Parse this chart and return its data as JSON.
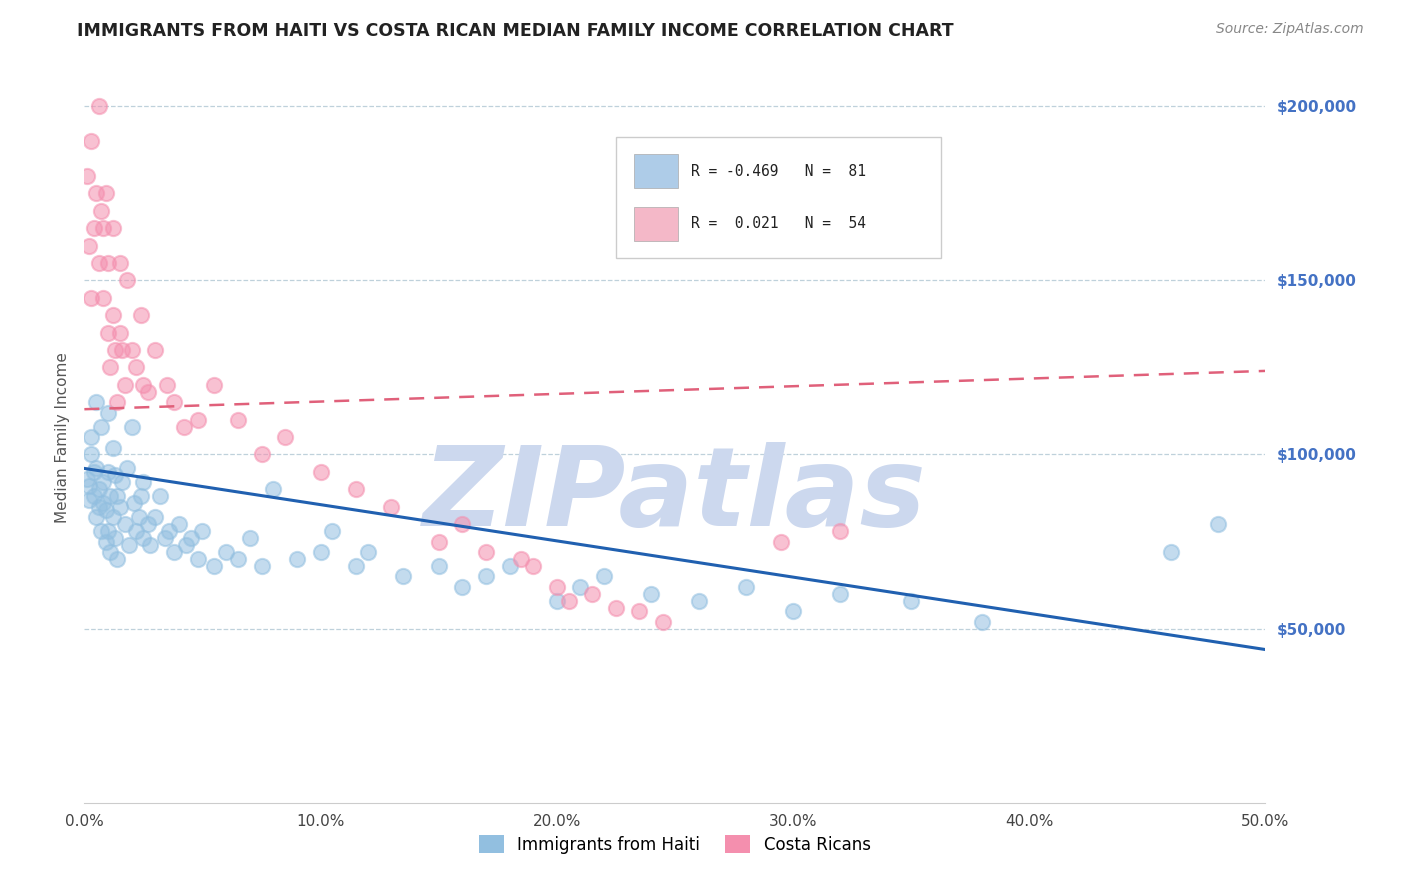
{
  "title": "IMMIGRANTS FROM HAITI VS COSTA RICAN MEDIAN FAMILY INCOME CORRELATION CHART",
  "source_text": "Source: ZipAtlas.com",
  "ylabel": "Median Family Income",
  "xlim": [
    0.0,
    0.5
  ],
  "ylim": [
    0,
    210000
  ],
  "ytick_labels": [
    "$50,000",
    "$100,000",
    "$150,000",
    "$200,000"
  ],
  "ytick_values": [
    50000,
    100000,
    150000,
    200000
  ],
  "xtick_labels": [
    "0.0%",
    "10.0%",
    "20.0%",
    "30.0%",
    "40.0%",
    "50.0%"
  ],
  "xtick_values": [
    0.0,
    0.1,
    0.2,
    0.3,
    0.4,
    0.5
  ],
  "legend_label_haiti": "Immigrants from Haiti",
  "legend_label_cr": "Costa Ricans",
  "haiti_color": "#92bfe0",
  "cr_color": "#f48fae",
  "haiti_line_color": "#2060b0",
  "cr_line_color": "#e0607a",
  "haiti_legend_color": "#aecce8",
  "cr_legend_color": "#f4b8c8",
  "watermark": "ZIPatlas",
  "watermark_color": "#ccd8ee",
  "background_color": "#ffffff",
  "haiti_trend_x": [
    0.0,
    0.5
  ],
  "haiti_trend_y": [
    96000,
    44000
  ],
  "cr_trend_x": [
    0.0,
    0.5
  ],
  "cr_trend_y": [
    113000,
    124000
  ],
  "grid_color": "#b8ccd8",
  "ytick_label_color": "#4472c4",
  "source_color": "#888888",
  "title_color": "#222222",
  "haiti_scatter_x": [
    0.001,
    0.002,
    0.002,
    0.003,
    0.003,
    0.004,
    0.004,
    0.005,
    0.005,
    0.005,
    0.006,
    0.006,
    0.007,
    0.007,
    0.008,
    0.008,
    0.009,
    0.009,
    0.01,
    0.01,
    0.01,
    0.011,
    0.011,
    0.012,
    0.012,
    0.013,
    0.013,
    0.014,
    0.014,
    0.015,
    0.016,
    0.017,
    0.018,
    0.019,
    0.02,
    0.021,
    0.022,
    0.023,
    0.024,
    0.025,
    0.025,
    0.027,
    0.028,
    0.03,
    0.032,
    0.034,
    0.036,
    0.038,
    0.04,
    0.043,
    0.045,
    0.048,
    0.05,
    0.055,
    0.06,
    0.065,
    0.07,
    0.075,
    0.08,
    0.09,
    0.1,
    0.105,
    0.115,
    0.12,
    0.135,
    0.15,
    0.16,
    0.17,
    0.18,
    0.2,
    0.21,
    0.22,
    0.24,
    0.26,
    0.28,
    0.3,
    0.32,
    0.35,
    0.38,
    0.46,
    0.48
  ],
  "haiti_scatter_y": [
    93000,
    91000,
    87000,
    100000,
    105000,
    95000,
    88000,
    115000,
    96000,
    82000,
    90000,
    85000,
    108000,
    78000,
    92000,
    86000,
    84000,
    75000,
    112000,
    95000,
    78000,
    88000,
    72000,
    102000,
    82000,
    94000,
    76000,
    88000,
    70000,
    85000,
    92000,
    80000,
    96000,
    74000,
    108000,
    86000,
    78000,
    82000,
    88000,
    76000,
    92000,
    80000,
    74000,
    82000,
    88000,
    76000,
    78000,
    72000,
    80000,
    74000,
    76000,
    70000,
    78000,
    68000,
    72000,
    70000,
    76000,
    68000,
    90000,
    70000,
    72000,
    78000,
    68000,
    72000,
    65000,
    68000,
    62000,
    65000,
    68000,
    58000,
    62000,
    65000,
    60000,
    58000,
    62000,
    55000,
    60000,
    58000,
    52000,
    72000,
    80000
  ],
  "cr_scatter_x": [
    0.001,
    0.002,
    0.003,
    0.003,
    0.004,
    0.005,
    0.006,
    0.006,
    0.007,
    0.008,
    0.008,
    0.009,
    0.01,
    0.01,
    0.011,
    0.012,
    0.012,
    0.013,
    0.014,
    0.015,
    0.015,
    0.016,
    0.017,
    0.018,
    0.02,
    0.022,
    0.024,
    0.025,
    0.027,
    0.03,
    0.035,
    0.038,
    0.042,
    0.048,
    0.055,
    0.065,
    0.075,
    0.085,
    0.1,
    0.115,
    0.13,
    0.15,
    0.16,
    0.17,
    0.185,
    0.2,
    0.215,
    0.225,
    0.235,
    0.245,
    0.19,
    0.205,
    0.32,
    0.295
  ],
  "cr_scatter_y": [
    180000,
    160000,
    190000,
    145000,
    165000,
    175000,
    155000,
    200000,
    170000,
    145000,
    165000,
    175000,
    135000,
    155000,
    125000,
    140000,
    165000,
    130000,
    115000,
    155000,
    135000,
    130000,
    120000,
    150000,
    130000,
    125000,
    140000,
    120000,
    118000,
    130000,
    120000,
    115000,
    108000,
    110000,
    120000,
    110000,
    100000,
    105000,
    95000,
    90000,
    85000,
    75000,
    80000,
    72000,
    70000,
    62000,
    60000,
    56000,
    55000,
    52000,
    68000,
    58000,
    78000,
    75000
  ]
}
